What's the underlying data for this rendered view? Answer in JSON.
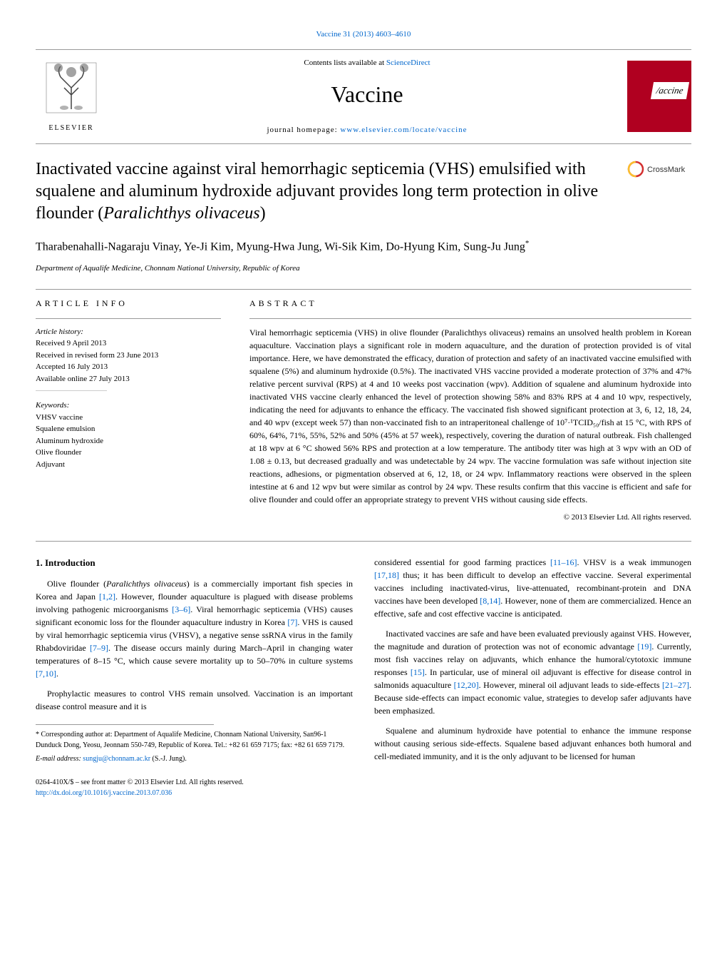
{
  "header": {
    "citation_link": "Vaccine 31 (2013) 4603–4610",
    "contents_prefix": "Contents lists available at ",
    "contents_link": "ScienceDirect",
    "journal_title": "Vaccine",
    "homepage_prefix": "journal homepage: ",
    "homepage_link": "www.elsevier.com/locate/vaccine",
    "publisher": "ELSEVIER",
    "cover_label": "/accine"
  },
  "crossmark_label": "CrossMark",
  "article": {
    "title_html": "Inactivated vaccine against viral hemorrhagic septicemia (VHS) emulsified with squalene and aluminum hydroxide adjuvant provides long term protection in olive flounder (<em>Paralichthys olivaceus</em>)",
    "authors": "Tharabenahalli-Nagaraju Vinay, Ye-Ji Kim, Myung-Hwa Jung, Wi-Sik Kim, Do-Hyung Kim, Sung-Ju Jung",
    "corresponding_marker": "*",
    "affiliation": "Department of Aqualife Medicine, Chonnam National University, Republic of Korea"
  },
  "info": {
    "heading": "ARTICLE INFO",
    "history_heading": "Article history:",
    "history": [
      "Received 9 April 2013",
      "Received in revised form 23 June 2013",
      "Accepted 16 July 2013",
      "Available online 27 July 2013"
    ],
    "keywords_heading": "Keywords:",
    "keywords": [
      "VHSV vaccine",
      "Squalene emulsion",
      "Aluminum hydroxide",
      "Olive flounder",
      "Adjuvant"
    ]
  },
  "abstract": {
    "heading": "ABSTRACT",
    "text": "Viral hemorrhagic septicemia (VHS) in olive flounder (Paralichthys olivaceus) remains an unsolved health problem in Korean aquaculture. Vaccination plays a significant role in modern aquaculture, and the duration of protection provided is of vital importance. Here, we have demonstrated the efficacy, duration of protection and safety of an inactivated vaccine emulsified with squalene (5%) and aluminum hydroxide (0.5%). The inactivated VHS vaccine provided a moderate protection of 37% and 47% relative percent survival (RPS) at 4 and 10 weeks post vaccination (wpv). Addition of squalene and aluminum hydroxide into inactivated VHS vaccine clearly enhanced the level of protection showing 58% and 83% RPS at 4 and 10 wpv, respectively, indicating the need for adjuvants to enhance the efficacy. The vaccinated fish showed significant protection at 3, 6, 12, 18, 24, and 40 wpv (except week 57) than non-vaccinated fish to an intraperitoneal challenge of 10⁷·¹TCID₅₀/fish at 15 °C, with RPS of 60%, 64%, 71%, 55%, 52% and 50% (45% at 57 week), respectively, covering the duration of natural outbreak. Fish challenged at 18 wpv at 6 °C showed 56% RPS and protection at a low temperature. The antibody titer was high at 3 wpv with an OD of 1.08 ± 0.13, but decreased gradually and was undetectable by 24 wpv. The vaccine formulation was safe without injection site reactions, adhesions, or pigmentation observed at 6, 12, 18, or 24 wpv. Inflammatory reactions were observed in the spleen intestine at 6 and 12 wpv but were similar as control by 24 wpv. These results confirm that this vaccine is efficient and safe for olive flounder and could offer an appropriate strategy to prevent VHS without causing side effects.",
    "copyright": "© 2013 Elsevier Ltd. All rights reserved."
  },
  "body": {
    "intro_heading": "1. Introduction",
    "left_paras": [
      "Olive flounder (<em>Paralichthys olivaceus</em>) is a commercially important fish species in Korea and Japan <a>[1,2]</a>. However, flounder aquaculture is plagued with disease problems involving pathogenic microorganisms <a>[3–6]</a>. Viral hemorrhagic septicemia (VHS) causes significant economic loss for the flounder aquaculture industry in Korea <a>[7]</a>. VHS is caused by viral hemorrhagic septicemia virus (VHSV), a negative sense ssRNA virus in the family Rhabdoviridae <a>[7–9]</a>. The disease occurs mainly during March–April in changing water temperatures of 8–15 °C, which cause severe mortality up to 50–70% in culture systems <a>[7,10]</a>.",
      "Prophylactic measures to control VHS remain unsolved. Vaccination is an important disease control measure and it is"
    ],
    "right_paras": [
      "considered essential for good farming practices <a>[11–16]</a>. VHSV is a weak immunogen <a>[17,18]</a> thus; it has been difficult to develop an effective vaccine. Several experimental vaccines including inactivated-virus, live-attenuated, recombinant-protein and DNA vaccines have been developed <a>[8,14]</a>. However, none of them are commercialized. Hence an effective, safe and cost effective vaccine is anticipated.",
      "Inactivated vaccines are safe and have been evaluated previously against VHS. However, the magnitude and duration of protection was not of economic advantage <a>[19]</a>. Currently, most fish vaccines relay on adjuvants, which enhance the humoral/cytotoxic immune responses <a>[15]</a>. In particular, use of mineral oil adjuvant is effective for disease control in salmonids aquaculture <a>[12,20]</a>. However, mineral oil adjuvant leads to side-effects <a>[21–27]</a>. Because side-effects can impact economic value, strategies to develop safer adjuvants have been emphasized.",
      "Squalene and aluminum hydroxide have potential to enhance the immune response without causing serious side-effects. Squalene based adjuvant enhances both humoral and cell-mediated immunity, and it is the only adjuvant to be licensed for human"
    ]
  },
  "footer": {
    "corresponding": "* Corresponding author at: Department of Aqualife Medicine, Chonnam National University, San96-1 Dunduck Dong, Yeosu, Jeonnam 550-749, Republic of Korea. Tel.: +82 61 659 7175; fax: +82 61 659 7179.",
    "email_prefix": "E-mail address: ",
    "email": "sungju@chonnam.ac.kr",
    "email_suffix": " (S.-J. Jung).",
    "issn_line": "0264-410X/$ – see front matter © 2013 Elsevier Ltd. All rights reserved.",
    "doi": "http://dx.doi.org/10.1016/j.vaccine.2013.07.036"
  },
  "colors": {
    "link": "#0066cc",
    "cover_bg": "#b00020",
    "divider": "#999999",
    "crossmark_red": "#d32f2f",
    "crossmark_yellow": "#fbc02d"
  }
}
